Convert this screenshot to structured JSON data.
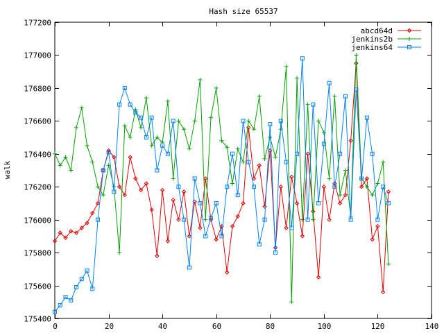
{
  "chart_data": {
    "type": "line",
    "title": "Hash size 65537",
    "xlabel": "",
    "ylabel": "walk",
    "xlim": [
      0,
      140
    ],
    "ylim": [
      175400,
      177200
    ],
    "xticks": [
      0,
      20,
      40,
      60,
      80,
      100,
      120,
      140
    ],
    "yticks": [
      175400,
      175600,
      175800,
      176000,
      176200,
      176400,
      176600,
      176800,
      177000,
      177200
    ],
    "grid": false,
    "legend_position": "top-right",
    "series": [
      {
        "name": "abcd64d",
        "color": "#e00000",
        "marker": "diamond",
        "x": [
          0,
          2,
          4,
          6,
          8,
          10,
          12,
          14,
          16,
          18,
          20,
          22,
          24,
          26,
          28,
          30,
          32,
          34,
          36,
          38,
          40,
          42,
          44,
          46,
          48,
          50,
          52,
          54,
          56,
          58,
          60,
          62,
          64,
          66,
          68,
          70,
          72,
          74,
          76,
          78,
          80,
          82,
          84,
          86,
          88,
          90,
          92,
          94,
          96,
          98,
          100,
          102,
          104,
          106,
          108,
          110,
          112,
          114,
          116,
          118,
          120,
          122,
          124
        ],
        "values": [
          175870,
          175920,
          175890,
          175930,
          175920,
          175950,
          175980,
          176040,
          176100,
          176300,
          176420,
          176380,
          176200,
          176150,
          176380,
          176250,
          176180,
          176220,
          176060,
          175780,
          176180,
          175870,
          176120,
          176000,
          176170,
          175900,
          176110,
          175950,
          176250,
          176000,
          175880,
          175960,
          175680,
          175960,
          176020,
          176100,
          176560,
          176250,
          176330,
          176080,
          176420,
          175830,
          176200,
          175950,
          176260,
          176100,
          175900,
          176400,
          176050,
          175650,
          176200,
          176000,
          176220,
          176100,
          176150,
          176480,
          176950,
          176200,
          176250,
          175880,
          175960,
          175560,
          176170
        ]
      },
      {
        "name": "jenkins2b",
        "color": "#00a000",
        "marker": "plus",
        "x": [
          0,
          2,
          4,
          6,
          8,
          10,
          12,
          14,
          16,
          18,
          20,
          22,
          24,
          26,
          28,
          30,
          32,
          34,
          36,
          38,
          40,
          42,
          44,
          46,
          48,
          50,
          52,
          54,
          56,
          58,
          60,
          62,
          64,
          66,
          68,
          70,
          72,
          74,
          76,
          78,
          80,
          82,
          84,
          86,
          88,
          90,
          92,
          94,
          96,
          98,
          100,
          102,
          104,
          106,
          108,
          110,
          112,
          114,
          116,
          118,
          120,
          122,
          124
        ],
        "values": [
          176400,
          176330,
          176380,
          176300,
          176560,
          176680,
          176450,
          176350,
          176200,
          176150,
          176330,
          176200,
          175800,
          176570,
          176500,
          176670,
          176560,
          176740,
          176450,
          176500,
          176470,
          176720,
          176250,
          176600,
          176550,
          176430,
          176600,
          176850,
          176000,
          176620,
          176800,
          176480,
          176440,
          176220,
          176430,
          176350,
          176600,
          176550,
          176750,
          176370,
          176500,
          176380,
          176550,
          176930,
          175500,
          176860,
          176000,
          176700,
          176000,
          176600,
          176530,
          176250,
          176750,
          176150,
          176300,
          176020,
          177000,
          176250,
          176200,
          176150,
          176220,
          176350,
          175730
        ]
      },
      {
        "name": "jenkins64",
        "color": "#0080ff",
        "marker": "square",
        "x": [
          0,
          2,
          4,
          6,
          8,
          10,
          12,
          14,
          16,
          18,
          20,
          22,
          24,
          26,
          28,
          30,
          32,
          34,
          36,
          38,
          40,
          42,
          44,
          46,
          48,
          50,
          52,
          54,
          56,
          58,
          60,
          62,
          64,
          66,
          68,
          70,
          72,
          74,
          76,
          78,
          80,
          82,
          84,
          86,
          88,
          90,
          92,
          94,
          96,
          98,
          100,
          102,
          104,
          106,
          108,
          110,
          112,
          114,
          116,
          118,
          120,
          122,
          124
        ],
        "values": [
          175440,
          175480,
          175530,
          175510,
          175590,
          175640,
          175690,
          175580,
          176000,
          176300,
          176410,
          176170,
          176700,
          176800,
          176700,
          176650,
          176620,
          176500,
          176620,
          176300,
          176450,
          176400,
          176600,
          176200,
          176000,
          175710,
          176250,
          176100,
          175900,
          176010,
          176100,
          175900,
          176200,
          176400,
          176150,
          176600,
          176350,
          176200,
          175850,
          176000,
          176580,
          175800,
          176600,
          176350,
          175950,
          176400,
          176980,
          176000,
          176700,
          176100,
          176460,
          176830,
          176200,
          176400,
          176750,
          176000,
          176790,
          176250,
          176620,
          176400,
          176000,
          176200,
          176100
        ]
      }
    ]
  }
}
